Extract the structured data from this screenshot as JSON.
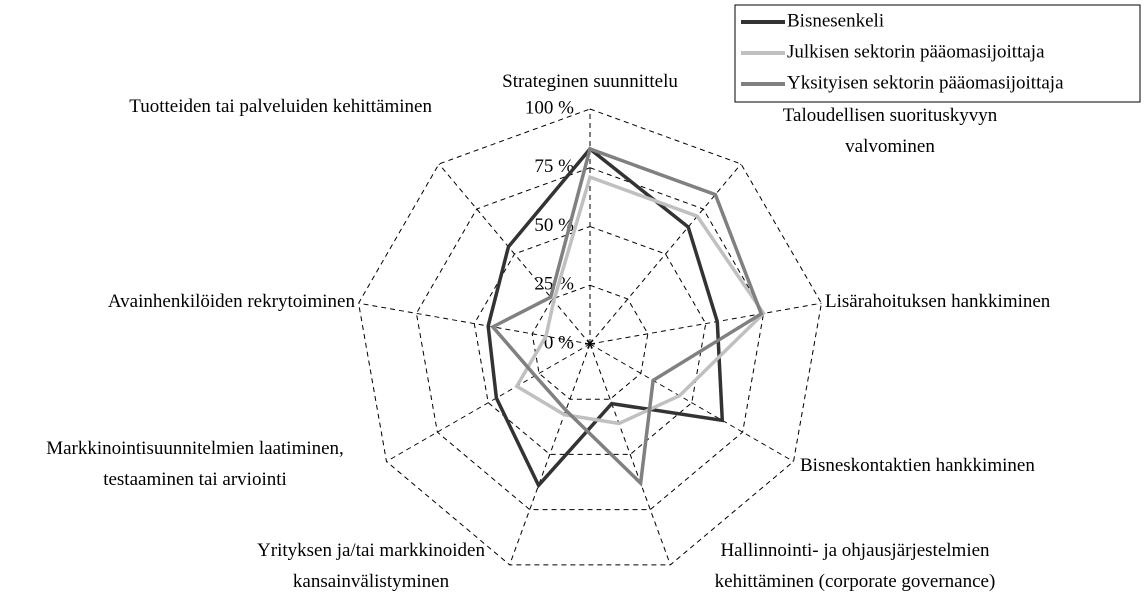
{
  "chart_data": {
    "type": "radar",
    "categories": [
      [
        "Strateginen suunnittelu"
      ],
      [
        "Taloudellisen suorituskyvyn",
        "valvominen"
      ],
      [
        "Lisärahoituksen hankkiminen"
      ],
      [
        "Bisneskontaktien hankkiminen"
      ],
      [
        "Hallinnointi- ja ohjausjärjestelmien",
        "kehittäminen (corporate governance)"
      ],
      [
        "Yrityksen ja/tai markkinoiden",
        "kansainvälistyminen"
      ],
      [
        "Markkinointisuunnitelmien laatiminen,",
        "testaaminen tai arviointi"
      ],
      [
        "Avainhenkilöiden rekrytoiminen"
      ],
      [
        "Tuotteiden tai palveluiden kehittäminen"
      ]
    ],
    "series": [
      {
        "name": "Bisnesenkeli",
        "color": "#333333",
        "values": [
          83,
          65,
          55,
          65,
          27,
          64,
          46,
          44,
          54
        ]
      },
      {
        "name": "Julkisen sektorin pääomasijoittaja",
        "color": "#c0c0c0",
        "values": [
          71,
          71,
          75,
          44,
          36,
          32,
          36,
          19,
          24
        ]
      },
      {
        "name": "Yksityisen sektorin pääomasijoittaja",
        "color": "#808080",
        "values": [
          83,
          83,
          74,
          31,
          63,
          30,
          27,
          42,
          26
        ]
      }
    ],
    "ylim": [
      0,
      100
    ],
    "yticks": [
      {
        "value": 0,
        "label": "0 %"
      },
      {
        "value": 25,
        "label": "25 %"
      },
      {
        "value": 50,
        "label": "50 %"
      },
      {
        "value": 75,
        "label": "75 %"
      },
      {
        "value": 100,
        "label": "100 %"
      }
    ],
    "grid": true,
    "legend": "top-right"
  }
}
